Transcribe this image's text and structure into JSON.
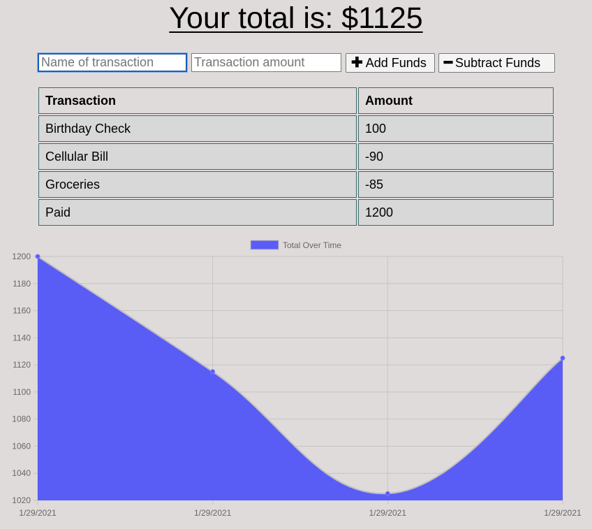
{
  "header": {
    "total_text": "Your total is: $1125"
  },
  "form": {
    "name_placeholder": "Name of transaction",
    "amount_placeholder": "Transaction amount",
    "add_label": "Add Funds",
    "subtract_label": "Subtract Funds"
  },
  "table": {
    "headers": [
      "Transaction",
      "Amount"
    ],
    "rows": [
      [
        "Birthday Check",
        "100"
      ],
      [
        "Cellular Bill",
        "-90"
      ],
      [
        "Groceries",
        "-85"
      ],
      [
        "Paid",
        "1200"
      ]
    ]
  },
  "colors": {
    "fill": "#5a5cf6",
    "line": "#bdbdbd",
    "point": "#5a5cf6"
  },
  "chart_data": {
    "type": "area",
    "legend": "top",
    "grid": true,
    "x": [
      "1/29/2021",
      "1/29/2021",
      "1/29/2021",
      "1/29/2021"
    ],
    "series": [
      {
        "name": "Total Over Time",
        "values": [
          1200,
          1115,
          1025,
          1125
        ]
      }
    ],
    "ylim": [
      1020,
      1200
    ],
    "yticks": [
      1200,
      1180,
      1160,
      1140,
      1120,
      1100,
      1080,
      1060,
      1040,
      1020
    ]
  }
}
